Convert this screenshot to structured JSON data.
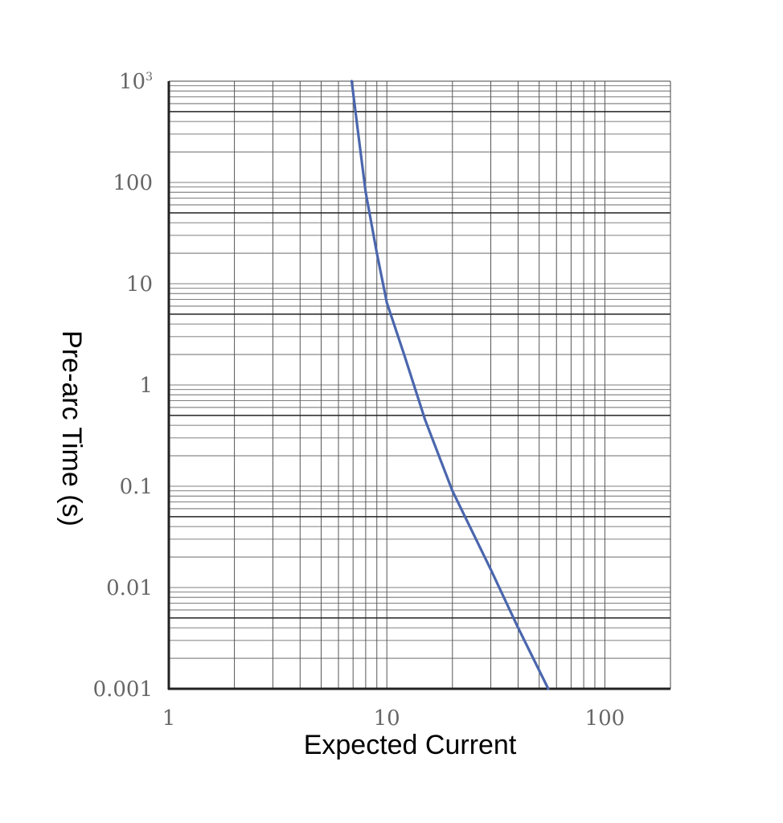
{
  "chart_data": {
    "type": "line",
    "title": "",
    "xlabel": "Expected Current",
    "ylabel": "Pre-arc Time (s)",
    "x_scale": "log",
    "y_scale": "log",
    "xlim": [
      1,
      200
    ],
    "ylim": [
      0.001,
      1000
    ],
    "grid": true,
    "x_tick_labels": [
      {
        "value": 1,
        "label": "1"
      },
      {
        "value": 10,
        "label": "10"
      },
      {
        "value": 100,
        "label": "100"
      }
    ],
    "y_tick_labels": [
      {
        "value": 1000,
        "label": "10",
        "sup": "3"
      },
      {
        "value": 100,
        "label": "100"
      },
      {
        "value": 10,
        "label": "10"
      },
      {
        "value": 1,
        "label": "1"
      },
      {
        "value": 0.1,
        "label": "0.1"
      },
      {
        "value": 0.01,
        "label": "0.01"
      },
      {
        "value": 0.001,
        "label": "0.001"
      }
    ],
    "series": [
      {
        "color": "#4a66ad",
        "x": [
          6.9,
          7.4,
          8.0,
          9.0,
          10.0,
          12.0,
          15.0,
          20.0,
          30.0,
          40.0,
          55.0
        ],
        "y": [
          1000,
          300,
          80,
          20,
          6.5,
          2.0,
          0.45,
          0.09,
          0.015,
          0.004,
          0.001
        ]
      }
    ]
  }
}
